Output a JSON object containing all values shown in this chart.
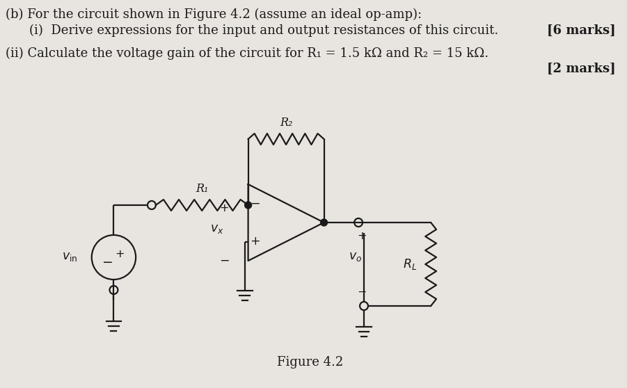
{
  "background_color": "#e8e4e0",
  "text_color": "#1a1a1a",
  "title_line1": "(b) For the circuit shown in Figure 4.2 (assume an ideal op-amp):",
  "title_line2": "(i)  Derive expressions for the input and output resistances of this circuit.",
  "marks1": "[6 marks]",
  "title_line3": "(ii) Calculate the voltage gain of the circuit for R₁ = 1.5 kΩ and R₂ = 15 kΩ.",
  "marks2": "[2 marks]",
  "figure_label": "Figure 4.2",
  "font_size_main": 13.0,
  "font_size_circuit": 11.5
}
